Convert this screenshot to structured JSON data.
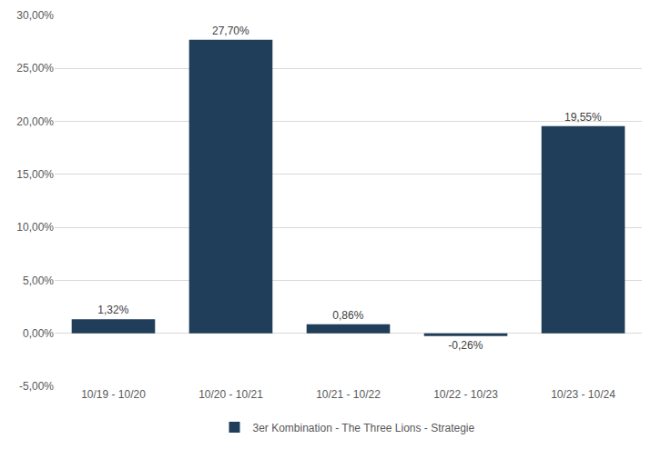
{
  "chart_data": {
    "type": "bar",
    "categories": [
      "10/19 - 10/20",
      "10/20 - 10/21",
      "10/21 - 10/22",
      "10/22 - 10/23",
      "10/23 - 10/24"
    ],
    "series": [
      {
        "name": "3er Kombination - The Three Lions - Strategie",
        "color": "#203d5a",
        "values": [
          1.32,
          27.7,
          0.86,
          -0.26,
          19.55
        ],
        "value_labels": [
          "1,32%",
          "27,70%",
          "0,86%",
          "-0,26%",
          "19,55%"
        ]
      }
    ],
    "ylim": [
      -5,
      30
    ],
    "yticks": [
      {
        "value": -5,
        "label": "-5,00%"
      },
      {
        "value": 0,
        "label": "0,00%"
      },
      {
        "value": 5,
        "label": "5,00%"
      },
      {
        "value": 10,
        "label": "10,00%"
      },
      {
        "value": 15,
        "label": "15,00%"
      },
      {
        "value": 20,
        "label": "20,00%"
      },
      {
        "value": 25,
        "label": "25,00%"
      },
      {
        "value": 30,
        "label": "30,00%"
      }
    ],
    "grid": true,
    "legend": "bottom",
    "data_labels": true
  }
}
